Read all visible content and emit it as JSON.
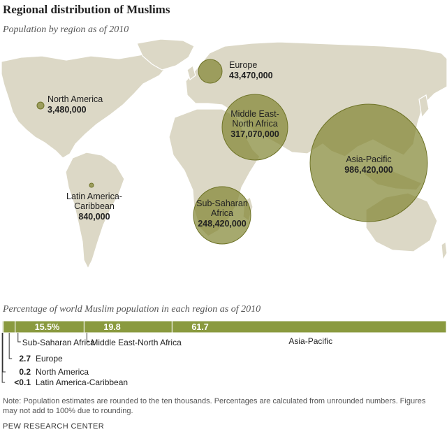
{
  "title": "Regional distribution of Muslims",
  "subtitle": "Population by region as of 2010",
  "map_regions": [
    {
      "name": "North America",
      "population": 3480000,
      "population_label": "3,480,000",
      "label_lines": [
        "North America"
      ]
    },
    {
      "name": "Latin America-Caribbean",
      "population": 840000,
      "population_label": "840,000",
      "label_lines": [
        "Latin America-",
        "Caribbean"
      ]
    },
    {
      "name": "Europe",
      "population": 43470000,
      "population_label": "43,470,000",
      "label_lines": [
        "Europe"
      ]
    },
    {
      "name": "Middle East-North Africa",
      "population": 317070000,
      "population_label": "317,070,000",
      "label_lines": [
        "Middle East-",
        "North Africa"
      ]
    },
    {
      "name": "Sub-Saharan Africa",
      "population": 248420000,
      "population_label": "248,420,000",
      "label_lines": [
        "Sub-Saharan",
        "Africa"
      ]
    },
    {
      "name": "Asia-Pacific",
      "population": 986420000,
      "population_label": "986,420,000",
      "label_lines": [
        "Asia-Pacific"
      ]
    }
  ],
  "percent_title": "Percentage of world Muslim population in each region as of 2010",
  "chart_data": {
    "type": "bar",
    "stacked": true,
    "orientation": "horizontal",
    "categories": [
      "Latin America-Caribbean",
      "North America",
      "Europe",
      "Sub-Saharan Africa",
      "Middle East-North Africa",
      "Asia-Pacific"
    ],
    "values": [
      0.05,
      0.2,
      2.7,
      15.5,
      19.8,
      61.7
    ],
    "value_labels": [
      "<0.1",
      "0.2",
      "2.7",
      "15.5%",
      "19.8",
      "61.7"
    ]
  },
  "colors": {
    "bubble": "#8a8e3c",
    "bar": "#8a9a3f",
    "land": "#dcd8c6"
  },
  "note": "Note: Population estimates are rounded to the ten thousands. Percentages are calculated from unrounded numbers. Figures may not add to 100% due to rounding.",
  "source": "PEW RESEARCH CENTER"
}
